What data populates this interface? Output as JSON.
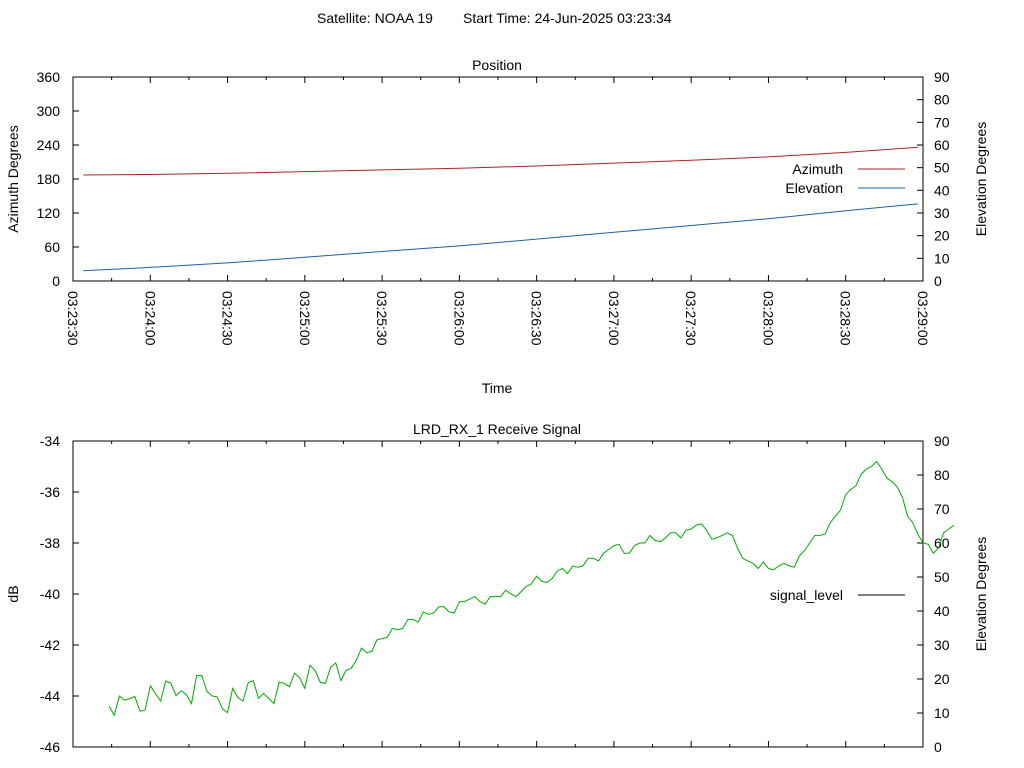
{
  "header": {
    "satellite": "Satellite: NOAA 19",
    "start_time": "Start Time: 24-Jun-2025 03:23:34"
  },
  "chart_data": [
    {
      "type": "line",
      "title": "Position",
      "xlabel": "Time",
      "ylabel": "Azimuth Degrees",
      "y2label": "Elevation Degrees",
      "ylim": [
        0,
        360
      ],
      "y2lim": [
        0,
        90
      ],
      "yticks": [
        0,
        60,
        120,
        180,
        240,
        300,
        360
      ],
      "y2ticks": [
        0,
        10,
        20,
        30,
        40,
        50,
        60,
        70,
        80,
        90
      ],
      "xlim": [
        "03:23:30",
        "03:29:00"
      ],
      "xticks": [
        "03:23:30",
        "03:24:00",
        "03:24:30",
        "03:25:00",
        "03:25:30",
        "03:26:00",
        "03:26:30",
        "03:27:00",
        "03:27:30",
        "03:28:00",
        "03:28:30",
        "03:29:00"
      ],
      "grid": false,
      "legend": "right",
      "series": [
        {
          "name": "Azimuth",
          "axis": "left",
          "color": "#b22222",
          "x": [
            "03:23:34",
            "03:24:00",
            "03:24:30",
            "03:25:00",
            "03:25:30",
            "03:26:00",
            "03:26:30",
            "03:27:00",
            "03:27:30",
            "03:28:00",
            "03:28:30",
            "03:28:58"
          ],
          "values": [
            187,
            188,
            190,
            193,
            196,
            199,
            203,
            208,
            213,
            219,
            227,
            236
          ]
        },
        {
          "name": "Elevation",
          "axis": "right",
          "color": "#1f5fa6",
          "x": [
            "03:23:34",
            "03:24:00",
            "03:24:30",
            "03:25:00",
            "03:25:30",
            "03:26:00",
            "03:26:30",
            "03:27:00",
            "03:27:30",
            "03:28:00",
            "03:28:30",
            "03:28:58"
          ],
          "values": [
            4.5,
            6,
            8,
            10.5,
            13,
            15.5,
            18.5,
            21.5,
            24.5,
            27.5,
            31,
            34
          ]
        }
      ]
    },
    {
      "type": "line",
      "title": "LRD_RX_1 Receive Signal",
      "ylabel": "dB",
      "y2label": "Elevation Degrees",
      "ylim": [
        -46,
        -34
      ],
      "y2lim": [
        0,
        90
      ],
      "yticks": [
        -46,
        -44,
        -42,
        -40,
        -38,
        -36,
        -34
      ],
      "y2ticks": [
        0,
        10,
        20,
        30,
        40,
        50,
        60,
        70,
        80,
        90
      ],
      "xlim": [
        "03:23:30",
        "03:29:00"
      ],
      "grid": false,
      "legend": "right",
      "series": [
        {
          "name": "signal_level",
          "color": "#00aa00",
          "x_seconds_from_start": [
            0,
            4,
            8,
            12,
            16,
            20,
            24,
            28,
            32,
            36,
            40,
            44,
            48,
            52,
            56,
            60,
            64,
            68,
            72,
            76,
            80,
            84,
            88,
            92,
            96,
            100,
            104,
            108,
            112,
            116,
            120,
            124,
            128,
            132,
            136,
            140,
            144,
            148,
            152,
            156,
            160,
            164,
            168,
            172,
            176,
            180,
            184,
            188,
            192,
            196,
            200,
            204,
            208,
            212,
            216,
            220,
            224,
            228,
            232,
            236,
            240,
            244,
            248,
            252,
            256,
            260,
            264,
            268,
            272,
            276,
            280,
            284,
            288,
            292,
            296,
            300,
            304,
            308,
            312,
            316,
            320,
            324,
            328
          ],
          "values": [
            -44.4,
            -44.0,
            -44.1,
            -44.6,
            -43.6,
            -44.2,
            -43.5,
            -43.8,
            -44.3,
            -43.2,
            -44.0,
            -44.5,
            -43.7,
            -44.2,
            -43.4,
            -43.9,
            -44.3,
            -43.5,
            -43.1,
            -43.7,
            -43.0,
            -43.5,
            -42.7,
            -43.0,
            -42.6,
            -42.3,
            -41.8,
            -41.7,
            -41.4,
            -41.0,
            -41.1,
            -40.8,
            -40.5,
            -40.7,
            -40.3,
            -40.2,
            -40.3,
            -40.1,
            -40.1,
            -40.0,
            -39.9,
            -39.6,
            -39.5,
            -39.4,
            -39.0,
            -38.9,
            -38.9,
            -38.6,
            -38.4,
            -38.1,
            -38.4,
            -38.1,
            -38.0,
            -37.9,
            -37.8,
            -37.6,
            -37.5,
            -37.3,
            -37.5,
            -37.8,
            -37.6,
            -38.2,
            -38.7,
            -39.0,
            -39.0,
            -38.9,
            -38.9,
            -38.5,
            -38.0,
            -37.7,
            -37.2,
            -36.7,
            -35.9,
            -35.3,
            -35.0,
            -35.1,
            -35.6,
            -36.2,
            -37.2,
            -38.0,
            -38.4,
            -37.6,
            -37.3
          ]
        }
      ]
    }
  ]
}
